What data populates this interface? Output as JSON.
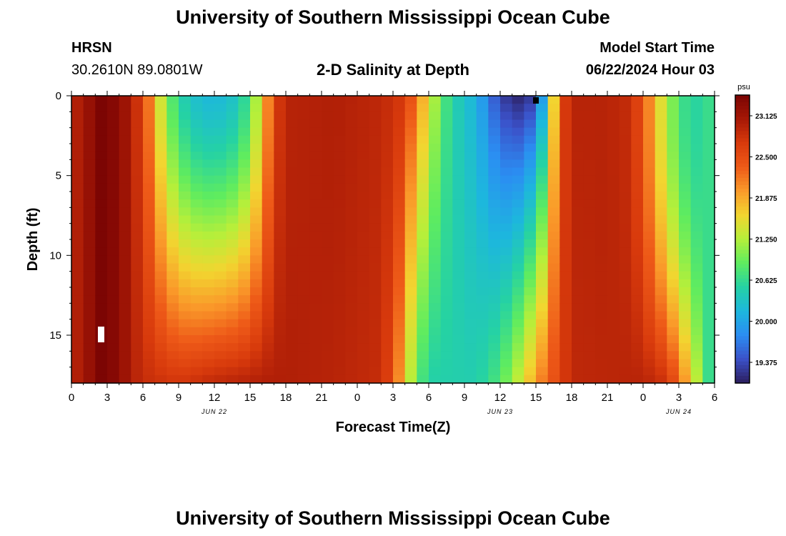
{
  "header": {
    "title": "University of Southern Mississippi Ocean Cube",
    "station_code": "HRSN",
    "station_coords": "30.2610N  89.0801W",
    "plot_title": "2-D Salinity at Depth",
    "model_start_label": "Model Start Time",
    "model_start_value": "06/22/2024 Hour 03"
  },
  "footer": {
    "title": "University of Southern Mississippi Ocean Cube"
  },
  "chart_data": {
    "type": "heatmap",
    "title": "2-D Salinity at Depth",
    "xlabel": "Forecast Time(Z)",
    "ylabel": "Depth (ft)",
    "x_tick_labels": [
      "0",
      "3",
      "6",
      "9",
      "12",
      "15",
      "18",
      "21",
      "0",
      "3",
      "6",
      "9",
      "12",
      "15",
      "18",
      "21",
      "0",
      "3",
      "6"
    ],
    "x_range_hours": [
      0,
      54
    ],
    "date_labels": [
      {
        "text": "JUN 22",
        "hour": 12
      },
      {
        "text": "JUN 23",
        "hour": 36
      },
      {
        "text": "JUN 24",
        "hour": 51
      }
    ],
    "y_tick_labels": [
      "0",
      "5",
      "10",
      "15"
    ],
    "y_tick_values": [
      0,
      5,
      10,
      15
    ],
    "ylim": [
      0,
      18
    ],
    "colorbar": {
      "unit": "psu",
      "ticks": [
        "23.125",
        "22.500",
        "21.875",
        "21.250",
        "20.625",
        "20.000",
        "19.375"
      ],
      "tick_values": [
        23.125,
        22.5,
        21.875,
        21.25,
        20.625,
        20.0,
        19.375
      ],
      "range": [
        19.06,
        23.44
      ]
    },
    "colors": [
      "#2c1e5e",
      "#3b51c9",
      "#2b8ef2",
      "#1db7dd",
      "#25d2a4",
      "#5fec5f",
      "#b6ef3a",
      "#f2d530",
      "#fa9a2a",
      "#ee5a18",
      "#d83a0c",
      "#a61806",
      "#7a0403"
    ],
    "time_step_hours": 1,
    "depth_step_ft": 0.5,
    "summary": "Surface salinity high (~23.2 psu) at hours 0-5, low (~20.3-21.8) hours 7-16, high 17-32, lowest (~19.1-20.0) hours 36-40, high 41-48, falling after hour 49."
  }
}
